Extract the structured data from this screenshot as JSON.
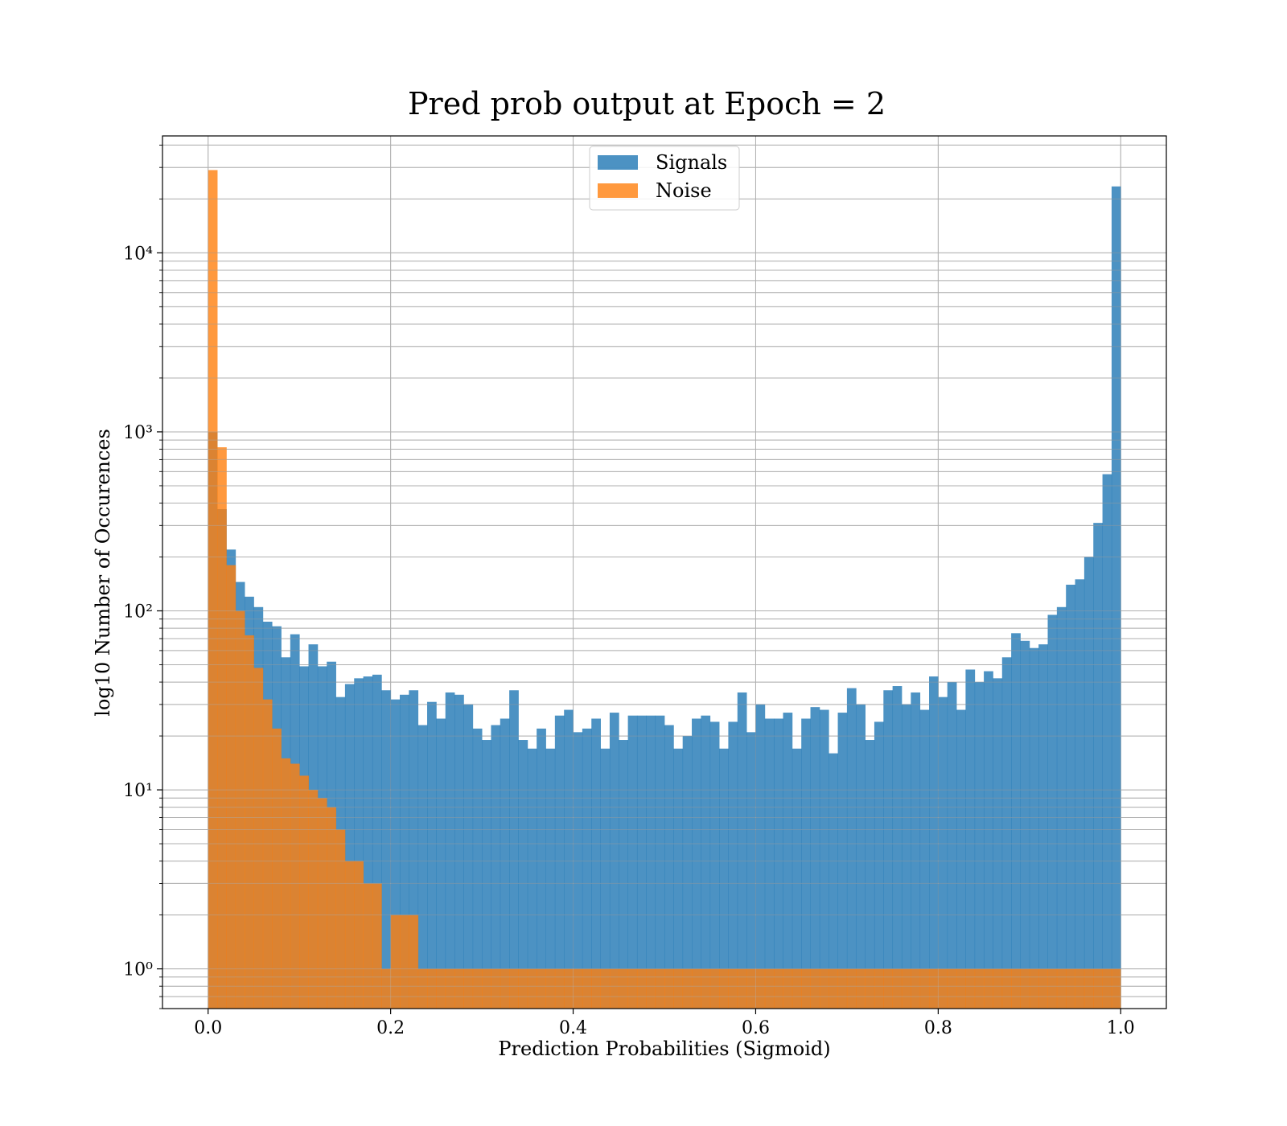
{
  "chart_data": {
    "type": "bar",
    "title": "Pred prob output at Epoch = 2",
    "xlabel": "Prediction Probabilities (Sigmoid)",
    "ylabel": "log10 Number of Occurences",
    "x_scale": "linear",
    "y_scale": "log",
    "xlim": [
      -0.05,
      1.05
    ],
    "ylim": [
      0.6,
      45000
    ],
    "x_ticks": [
      0.0,
      0.2,
      0.4,
      0.6,
      0.8,
      1.0
    ],
    "x_tick_labels": [
      "0.0",
      "0.2",
      "0.4",
      "0.6",
      "0.8",
      "1.0"
    ],
    "y_ticks": [
      1,
      10,
      100,
      1000,
      10000
    ],
    "y_tick_labels": [
      "10⁰",
      "10¹",
      "10²",
      "10³",
      "10⁴"
    ],
    "grid": true,
    "legend_position": "top-center",
    "bins": 100,
    "bin_range": [
      0,
      1
    ],
    "series": [
      {
        "name": "Signals",
        "color": "#1f77b4",
        "values": [
          1000,
          370,
          220,
          145,
          120,
          105,
          87,
          82,
          55,
          74,
          49,
          65,
          49,
          52,
          33,
          39,
          42,
          43,
          44,
          36,
          32,
          34,
          36,
          23,
          31,
          25,
          35,
          34,
          30,
          22,
          19,
          23,
          25,
          36,
          19,
          17,
          22,
          17,
          26,
          28,
          21,
          22,
          25,
          17,
          27,
          19,
          26,
          26,
          26,
          26,
          23,
          17,
          20,
          25,
          26,
          24,
          17,
          24,
          35,
          21,
          30,
          25,
          25,
          27,
          17,
          25,
          29,
          28,
          16,
          27,
          37,
          30,
          19,
          24,
          36,
          38,
          30,
          35,
          28,
          43,
          33,
          40,
          28,
          47,
          40,
          46,
          42,
          55,
          75,
          68,
          62,
          65,
          95,
          105,
          140,
          150,
          200,
          310,
          580,
          23500
        ]
      },
      {
        "name": "Noise",
        "color": "#ff7f0e",
        "values": [
          29000,
          820,
          180,
          100,
          73,
          48,
          32,
          22,
          15,
          14,
          12,
          10,
          9,
          8,
          6,
          4,
          4,
          3,
          3,
          1,
          2,
          2,
          2,
          1,
          1,
          1,
          1,
          1,
          1,
          1,
          1,
          1,
          1,
          1,
          1,
          1,
          1,
          1,
          1,
          1,
          1,
          1,
          1,
          1,
          1,
          1,
          1,
          1,
          1,
          1,
          1,
          1,
          1,
          1,
          1,
          1,
          1,
          1,
          1,
          1,
          1,
          1,
          1,
          1,
          1,
          1,
          1,
          1,
          1,
          1,
          1,
          1,
          1,
          1,
          1,
          1,
          1,
          1,
          1,
          1,
          1,
          1,
          1,
          1,
          1,
          1,
          1,
          1,
          1,
          1,
          1,
          1,
          1,
          1,
          1,
          1,
          1,
          1,
          1,
          1
        ]
      }
    ]
  }
}
